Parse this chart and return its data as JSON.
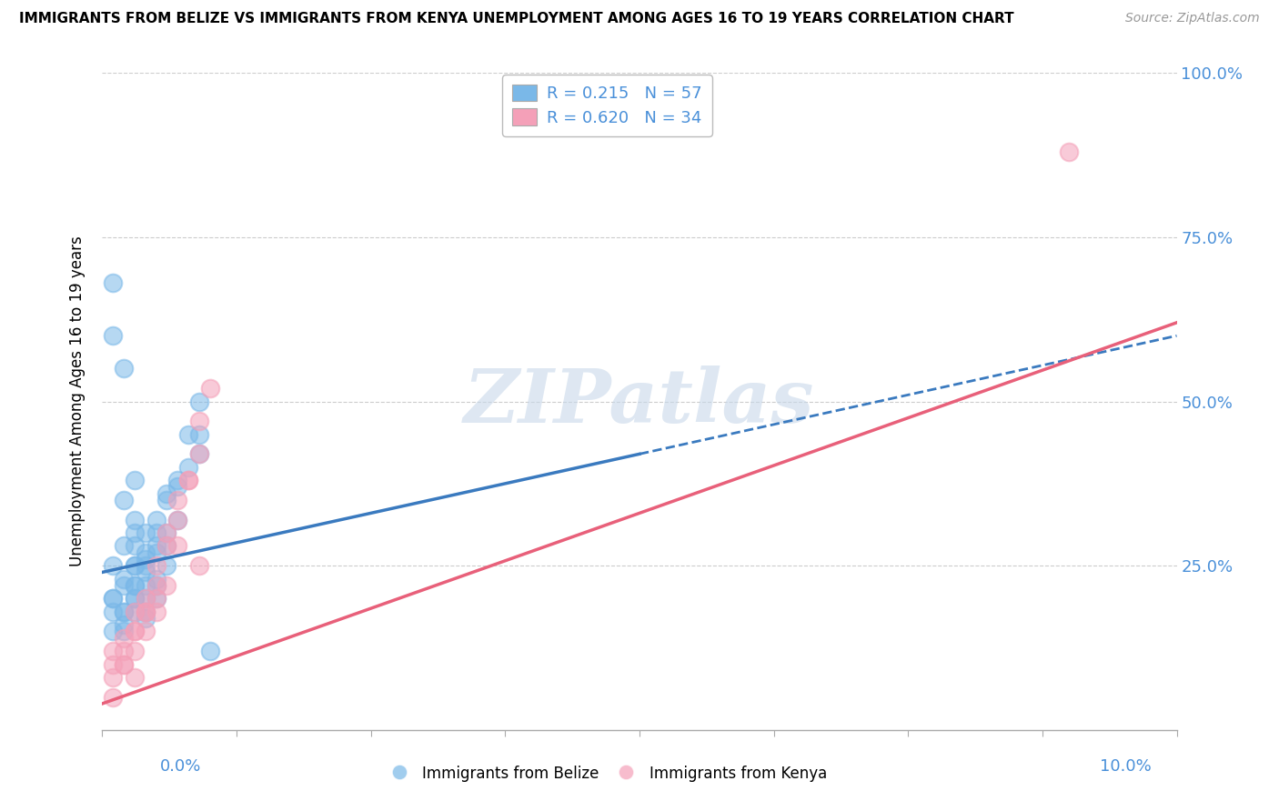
{
  "title": "IMMIGRANTS FROM BELIZE VS IMMIGRANTS FROM KENYA UNEMPLOYMENT AMONG AGES 16 TO 19 YEARS CORRELATION CHART",
  "source": "Source: ZipAtlas.com",
  "ylabel": "Unemployment Among Ages 16 to 19 years",
  "belize_R": 0.215,
  "belize_N": 57,
  "kenya_R": 0.62,
  "kenya_N": 34,
  "belize_color": "#7ab8e8",
  "kenya_color": "#f4a0b8",
  "belize_line_color": "#3a7abf",
  "kenya_line_color": "#e8607a",
  "axis_label_color": "#4a90d9",
  "background_color": "#ffffff",
  "grid_color": "#cccccc",
  "watermark_text": "ZIPatlas",
  "watermark_color": "#c8d8ea",
  "belize_x": [
    0.002,
    0.003,
    0.003,
    0.004,
    0.004,
    0.005,
    0.005,
    0.006,
    0.007,
    0.008,
    0.002,
    0.002,
    0.003,
    0.003,
    0.004,
    0.004,
    0.005,
    0.006,
    0.007,
    0.009,
    0.001,
    0.002,
    0.003,
    0.003,
    0.004,
    0.004,
    0.005,
    0.005,
    0.006,
    0.007,
    0.001,
    0.001,
    0.002,
    0.002,
    0.003,
    0.003,
    0.004,
    0.004,
    0.005,
    0.006,
    0.001,
    0.001,
    0.002,
    0.002,
    0.003,
    0.003,
    0.004,
    0.005,
    0.006,
    0.008,
    0.001,
    0.001,
    0.002,
    0.003,
    0.009,
    0.009,
    0.01
  ],
  "belize_y": [
    0.35,
    0.32,
    0.28,
    0.3,
    0.26,
    0.32,
    0.28,
    0.36,
    0.38,
    0.4,
    0.28,
    0.22,
    0.25,
    0.3,
    0.27,
    0.24,
    0.3,
    0.35,
    0.37,
    0.42,
    0.2,
    0.18,
    0.22,
    0.2,
    0.22,
    0.18,
    0.23,
    0.2,
    0.28,
    0.32,
    0.15,
    0.18,
    0.16,
    0.15,
    0.18,
    0.2,
    0.2,
    0.17,
    0.22,
    0.25,
    0.25,
    0.2,
    0.23,
    0.18,
    0.25,
    0.22,
    0.25,
    0.27,
    0.3,
    0.45,
    0.68,
    0.6,
    0.55,
    0.38,
    0.5,
    0.45,
    0.12
  ],
  "kenya_x": [
    0.001,
    0.002,
    0.003,
    0.003,
    0.004,
    0.004,
    0.005,
    0.005,
    0.006,
    0.007,
    0.001,
    0.002,
    0.002,
    0.003,
    0.004,
    0.005,
    0.006,
    0.007,
    0.008,
    0.009,
    0.001,
    0.002,
    0.003,
    0.004,
    0.005,
    0.006,
    0.007,
    0.008,
    0.009,
    0.01,
    0.001,
    0.003,
    0.009,
    0.09
  ],
  "kenya_y": [
    0.12,
    0.1,
    0.15,
    0.12,
    0.18,
    0.15,
    0.2,
    0.18,
    0.22,
    0.28,
    0.08,
    0.12,
    0.1,
    0.15,
    0.18,
    0.22,
    0.28,
    0.32,
    0.38,
    0.42,
    0.1,
    0.14,
    0.18,
    0.2,
    0.25,
    0.3,
    0.35,
    0.38,
    0.47,
    0.52,
    0.05,
    0.08,
    0.25,
    0.88
  ],
  "xmin": 0.0,
  "xmax": 0.1,
  "ymin": 0.0,
  "ymax": 1.0,
  "belize_trendline_x0": 0.0,
  "belize_trendline_x1": 0.1,
  "belize_trendline_y0": 0.24,
  "belize_trendline_y1": 0.6,
  "kenya_trendline_x0": 0.0,
  "kenya_trendline_x1": 0.1,
  "kenya_trendline_y0": 0.04,
  "kenya_trendline_y1": 0.62
}
